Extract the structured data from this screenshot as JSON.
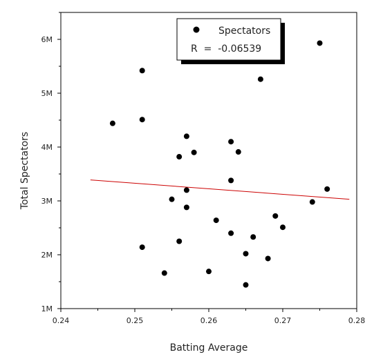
{
  "chart_data": {
    "type": "scatter",
    "xlabel": "Batting Average",
    "ylabel": "Total Spectators",
    "xlim": [
      0.24,
      0.28
    ],
    "ylim": [
      1000000,
      6500000
    ],
    "x_ticks": [
      {
        "value": 0.24,
        "label": "0.24"
      },
      {
        "value": 0.25,
        "label": "0.25"
      },
      {
        "value": 0.26,
        "label": "0.26"
      },
      {
        "value": 0.27,
        "label": "0.27"
      },
      {
        "value": 0.28,
        "label": "0.28"
      }
    ],
    "y_ticks": [
      {
        "value": 1000000,
        "label": "1M"
      },
      {
        "value": 2000000,
        "label": "2M"
      },
      {
        "value": 3000000,
        "label": "3M"
      },
      {
        "value": 4000000,
        "label": "4M"
      },
      {
        "value": 5000000,
        "label": "5M"
      },
      {
        "value": 6000000,
        "label": "6M"
      }
    ],
    "grid": false,
    "legend_position": "top-right",
    "series": [
      {
        "name": "Spectators",
        "color": "#000000",
        "points": [
          {
            "x": 0.247,
            "y": 4440000
          },
          {
            "x": 0.251,
            "y": 5420000
          },
          {
            "x": 0.251,
            "y": 4510000
          },
          {
            "x": 0.251,
            "y": 2140000
          },
          {
            "x": 0.254,
            "y": 1660000
          },
          {
            "x": 0.255,
            "y": 3030000
          },
          {
            "x": 0.256,
            "y": 3820000
          },
          {
            "x": 0.256,
            "y": 2250000
          },
          {
            "x": 0.257,
            "y": 4200000
          },
          {
            "x": 0.257,
            "y": 3200000
          },
          {
            "x": 0.257,
            "y": 2880000
          },
          {
            "x": 0.258,
            "y": 3900000
          },
          {
            "x": 0.26,
            "y": 1690000
          },
          {
            "x": 0.261,
            "y": 2640000
          },
          {
            "x": 0.263,
            "y": 4100000
          },
          {
            "x": 0.263,
            "y": 3380000
          },
          {
            "x": 0.263,
            "y": 2400000
          },
          {
            "x": 0.264,
            "y": 3910000
          },
          {
            "x": 0.265,
            "y": 2020000
          },
          {
            "x": 0.265,
            "y": 1440000
          },
          {
            "x": 0.266,
            "y": 2330000
          },
          {
            "x": 0.267,
            "y": 5260000
          },
          {
            "x": 0.268,
            "y": 1930000
          },
          {
            "x": 0.269,
            "y": 2720000
          },
          {
            "x": 0.27,
            "y": 2510000
          },
          {
            "x": 0.274,
            "y": 2980000
          },
          {
            "x": 0.275,
            "y": 5930000
          },
          {
            "x": 0.276,
            "y": 3220000
          }
        ]
      }
    ],
    "fit_line": {
      "color": "#cc0000",
      "points": [
        {
          "x": 0.244,
          "y": 3390000
        },
        {
          "x": 0.279,
          "y": 3030000
        }
      ]
    },
    "annotation": "R  =  -0.06539"
  }
}
